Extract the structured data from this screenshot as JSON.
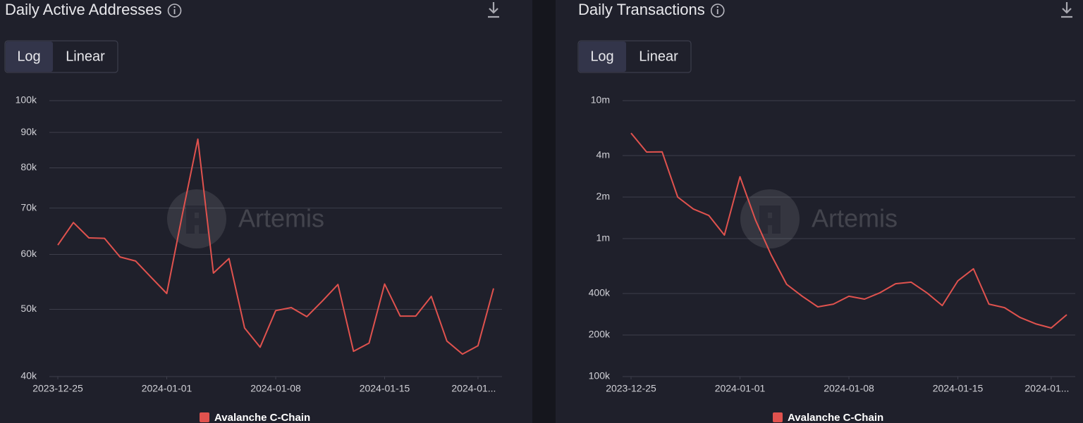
{
  "panels": [
    {
      "buttons": [
        "Log",
        "Linear"
      ],
      "active_button": 0,
      "watermark": "Artemis"
    },
    {
      "buttons": [
        "Log",
        "Linear"
      ],
      "active_button": 0,
      "watermark": "Artemis"
    }
  ],
  "chart_data": [
    {
      "type": "line",
      "title": "Daily Active Addresses",
      "yscale": "log",
      "grid": true,
      "x": [
        "2023-12-25",
        "2023-12-26",
        "2023-12-27",
        "2023-12-28",
        "2023-12-29",
        "2023-12-30",
        "2023-12-31",
        "2024-01-01",
        "2024-01-02",
        "2024-01-03",
        "2024-01-04",
        "2024-01-05",
        "2024-01-06",
        "2024-01-07",
        "2024-01-08",
        "2024-01-09",
        "2024-01-10",
        "2024-01-11",
        "2024-01-12",
        "2024-01-13",
        "2024-01-14",
        "2024-01-15",
        "2024-01-16",
        "2024-01-17",
        "2024-01-18",
        "2024-01-19",
        "2024-01-20",
        "2024-01-21",
        "2024-01-22"
      ],
      "xticks": [
        "2023-12-25",
        "2024-01-01",
        "2024-01-08",
        "2024-01-15",
        {
          "value": "2024-01-21",
          "label": "2024-01..."
        }
      ],
      "ylim": [
        40000,
        100000
      ],
      "yticks": [
        {
          "value": 40000,
          "label": "40k"
        },
        {
          "value": 50000,
          "label": "50k"
        },
        {
          "value": 60000,
          "label": "60k"
        },
        {
          "value": 70000,
          "label": "70k"
        },
        {
          "value": 80000,
          "label": "80k"
        },
        {
          "value": 90000,
          "label": "90k"
        },
        {
          "value": 100000,
          "label": "100k"
        }
      ],
      "series": [
        {
          "name": "Avalanche C-Chain",
          "color": "#e0524e",
          "values": [
            61900,
            66700,
            63400,
            63300,
            59500,
            58700,
            55600,
            52700,
            68500,
            88000,
            56400,
            59200,
            47000,
            44100,
            49800,
            50300,
            48800,
            51400,
            54300,
            43500,
            44700,
            54400,
            48900,
            48900,
            52200,
            45000,
            43100,
            44300,
            53600
          ]
        }
      ]
    },
    {
      "type": "line",
      "title": "Daily Transactions",
      "yscale": "log",
      "grid": true,
      "x": [
        "2023-12-25",
        "2023-12-26",
        "2023-12-27",
        "2023-12-28",
        "2023-12-29",
        "2023-12-30",
        "2023-12-31",
        "2024-01-01",
        "2024-01-02",
        "2024-01-03",
        "2024-01-04",
        "2024-01-05",
        "2024-01-06",
        "2024-01-07",
        "2024-01-08",
        "2024-01-09",
        "2024-01-10",
        "2024-01-11",
        "2024-01-12",
        "2024-01-13",
        "2024-01-14",
        "2024-01-15",
        "2024-01-16",
        "2024-01-17",
        "2024-01-18",
        "2024-01-19",
        "2024-01-20",
        "2024-01-21",
        "2024-01-22"
      ],
      "xticks": [
        "2023-12-25",
        "2024-01-01",
        "2024-01-08",
        "2024-01-15",
        {
          "value": "2024-01-21",
          "label": "2024-01..."
        }
      ],
      "ylim": [
        100000,
        10000000
      ],
      "yticks": [
        {
          "value": 100000,
          "label": "100k"
        },
        {
          "value": 200000,
          "label": "200k"
        },
        {
          "value": 400000,
          "label": "400k"
        },
        {
          "value": 1000000,
          "label": "1m"
        },
        {
          "value": 2000000,
          "label": "2m"
        },
        {
          "value": 4000000,
          "label": "4m"
        },
        {
          "value": 10000000,
          "label": "10m"
        }
      ],
      "series": [
        {
          "name": "Avalanche C-Chain",
          "color": "#e0524e",
          "values": [
            5820000,
            4240000,
            4250000,
            2000000,
            1640000,
            1470000,
            1060000,
            2810000,
            1360000,
            764000,
            466000,
            382000,
            320000,
            335000,
            382000,
            364000,
            405000,
            471000,
            483000,
            405000,
            327000,
            494000,
            604000,
            335000,
            316000,
            268000,
            241000,
            225000,
            281000
          ]
        }
      ]
    }
  ]
}
